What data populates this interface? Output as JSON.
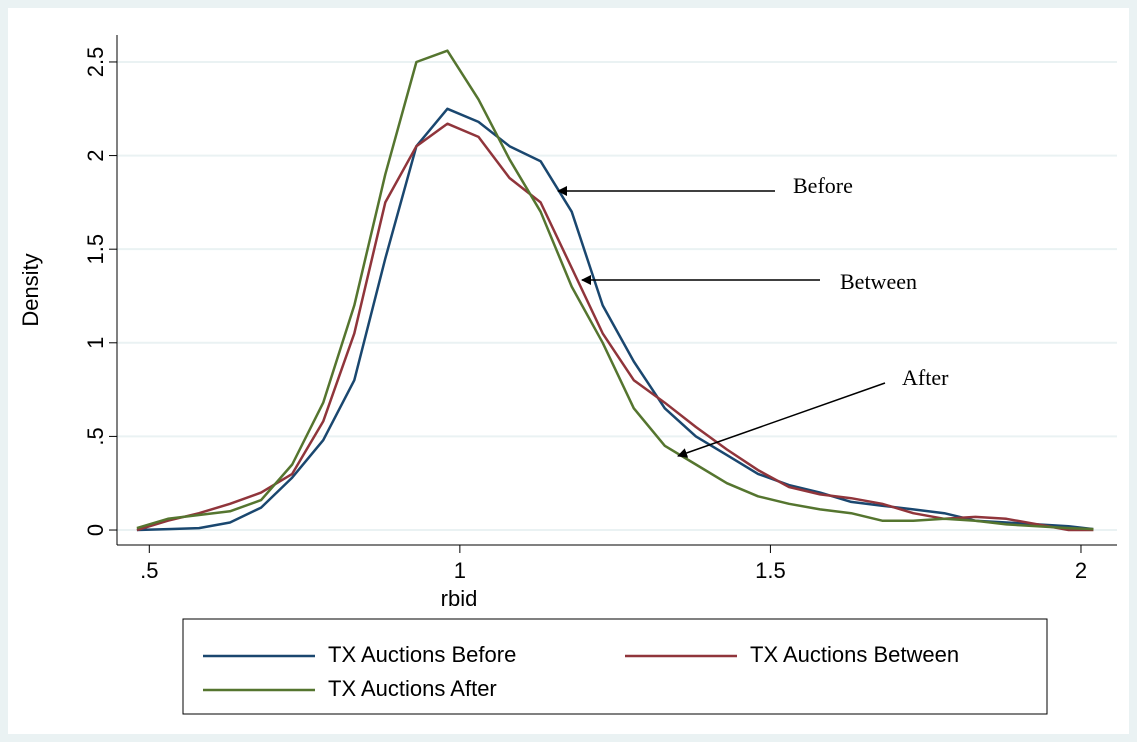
{
  "chart_data": {
    "type": "line",
    "x_label": "rbid",
    "y_label": "Density",
    "x": [
      0.48,
      0.53,
      0.58,
      0.63,
      0.68,
      0.73,
      0.78,
      0.83,
      0.88,
      0.93,
      0.98,
      1.03,
      1.08,
      1.13,
      1.18,
      1.23,
      1.28,
      1.33,
      1.38,
      1.43,
      1.48,
      1.53,
      1.58,
      1.63,
      1.68,
      1.73,
      1.78,
      1.83,
      1.88,
      1.93,
      1.98,
      2.02
    ],
    "series": [
      {
        "name": "TX Auctions Before",
        "color": "#1a476f",
        "values": [
          0.0,
          0.005,
          0.01,
          0.04,
          0.12,
          0.28,
          0.48,
          0.8,
          1.45,
          2.05,
          2.25,
          2.18,
          2.05,
          1.97,
          1.7,
          1.2,
          0.9,
          0.65,
          0.5,
          0.4,
          0.3,
          0.24,
          0.2,
          0.15,
          0.13,
          0.11,
          0.09,
          0.05,
          0.04,
          0.03,
          0.02,
          0.005
        ]
      },
      {
        "name": "TX Auctions Between",
        "color": "#90353b",
        "values": [
          0.0,
          0.05,
          0.09,
          0.14,
          0.2,
          0.3,
          0.58,
          1.05,
          1.75,
          2.05,
          2.17,
          2.1,
          1.88,
          1.75,
          1.4,
          1.05,
          0.8,
          0.68,
          0.55,
          0.43,
          0.32,
          0.23,
          0.19,
          0.17,
          0.14,
          0.09,
          0.06,
          0.07,
          0.06,
          0.03,
          0.0,
          0.0
        ]
      },
      {
        "name": "TX Auctions After",
        "color": "#55752f",
        "values": [
          0.01,
          0.06,
          0.08,
          0.1,
          0.16,
          0.35,
          0.68,
          1.2,
          1.9,
          2.5,
          2.56,
          2.3,
          1.98,
          1.7,
          1.3,
          1.0,
          0.65,
          0.45,
          0.35,
          0.25,
          0.18,
          0.14,
          0.11,
          0.09,
          0.05,
          0.05,
          0.06,
          0.05,
          0.03,
          0.02,
          0.01,
          0.005
        ]
      }
    ],
    "xlim": [
      0.448,
      2.058
    ],
    "ylim": [
      -0.08,
      2.644
    ],
    "xticks": [
      {
        "value": 0.5,
        "label": ".5"
      },
      1,
      1.5,
      2
    ],
    "yticks": [
      0,
      {
        "value": 0.5,
        "label": ".5"
      },
      1,
      1.5,
      2,
      2.5
    ],
    "grid": true,
    "legend": "bottom",
    "annotations": [
      "Before",
      "Between",
      "After"
    ]
  }
}
